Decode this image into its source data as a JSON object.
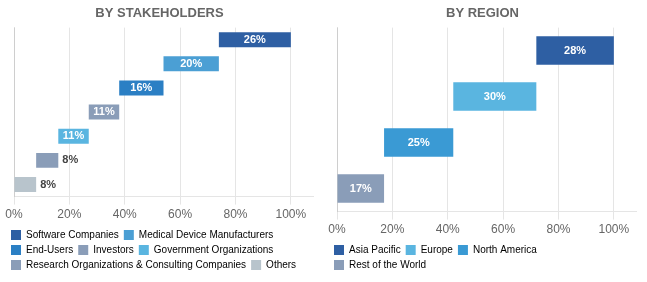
{
  "chart_data": [
    {
      "type": "waterfall",
      "orientation": "horizontal",
      "title": "BY STAKEHOLDERS",
      "categories": [
        "Software Companies",
        "Medical Device Manufacturers",
        "End-Users",
        "Investors",
        "Government Organizations",
        "Research Organizations & Consulting Companies",
        "Others"
      ],
      "values": [
        26,
        20,
        16,
        11,
        11,
        8,
        8
      ],
      "value_labels": [
        "26%",
        "20%",
        "16%",
        "11%",
        "11%",
        "8%",
        "8%"
      ],
      "colors": [
        "#2e5fa3",
        "#4b9fd4",
        "#2b7fc4",
        "#8a9db8",
        "#5ab5e0",
        "#8a9db8",
        "#b8c4cc"
      ],
      "xlim": [
        0,
        108
      ],
      "xticks": [
        {
          "value": 0,
          "label": "0%"
        },
        {
          "value": 20,
          "label": "20%"
        },
        {
          "value": 40,
          "label": "40%"
        },
        {
          "value": 60,
          "label": "60%"
        },
        {
          "value": 80,
          "label": "80%"
        },
        {
          "value": 100,
          "label": "100%"
        }
      ],
      "grid": true,
      "legend": "bottom",
      "data_labels": true,
      "tick_labels": "x"
    },
    {
      "type": "waterfall",
      "orientation": "horizontal",
      "title": "BY REGION",
      "categories": [
        "Asia Pacific",
        "Europe",
        "North America",
        "Rest of the World"
      ],
      "values": [
        28,
        30,
        25,
        17
      ],
      "value_labels": [
        "28%",
        "30%",
        "25%",
        "17%"
      ],
      "colors": [
        "#2e5fa3",
        "#5ab5e0",
        "#3a9ad4",
        "#8a9db8"
      ],
      "xlim": [
        0,
        108
      ],
      "xticks": [
        {
          "value": 0,
          "label": "0%"
        },
        {
          "value": 20,
          "label": "20%"
        },
        {
          "value": 40,
          "label": "40%"
        },
        {
          "value": 60,
          "label": "60%"
        },
        {
          "value": 80,
          "label": "80%"
        },
        {
          "value": 100,
          "label": "100%"
        }
      ],
      "grid": true,
      "legend": "bottom",
      "data_labels": true,
      "tick_labels": "x"
    }
  ]
}
